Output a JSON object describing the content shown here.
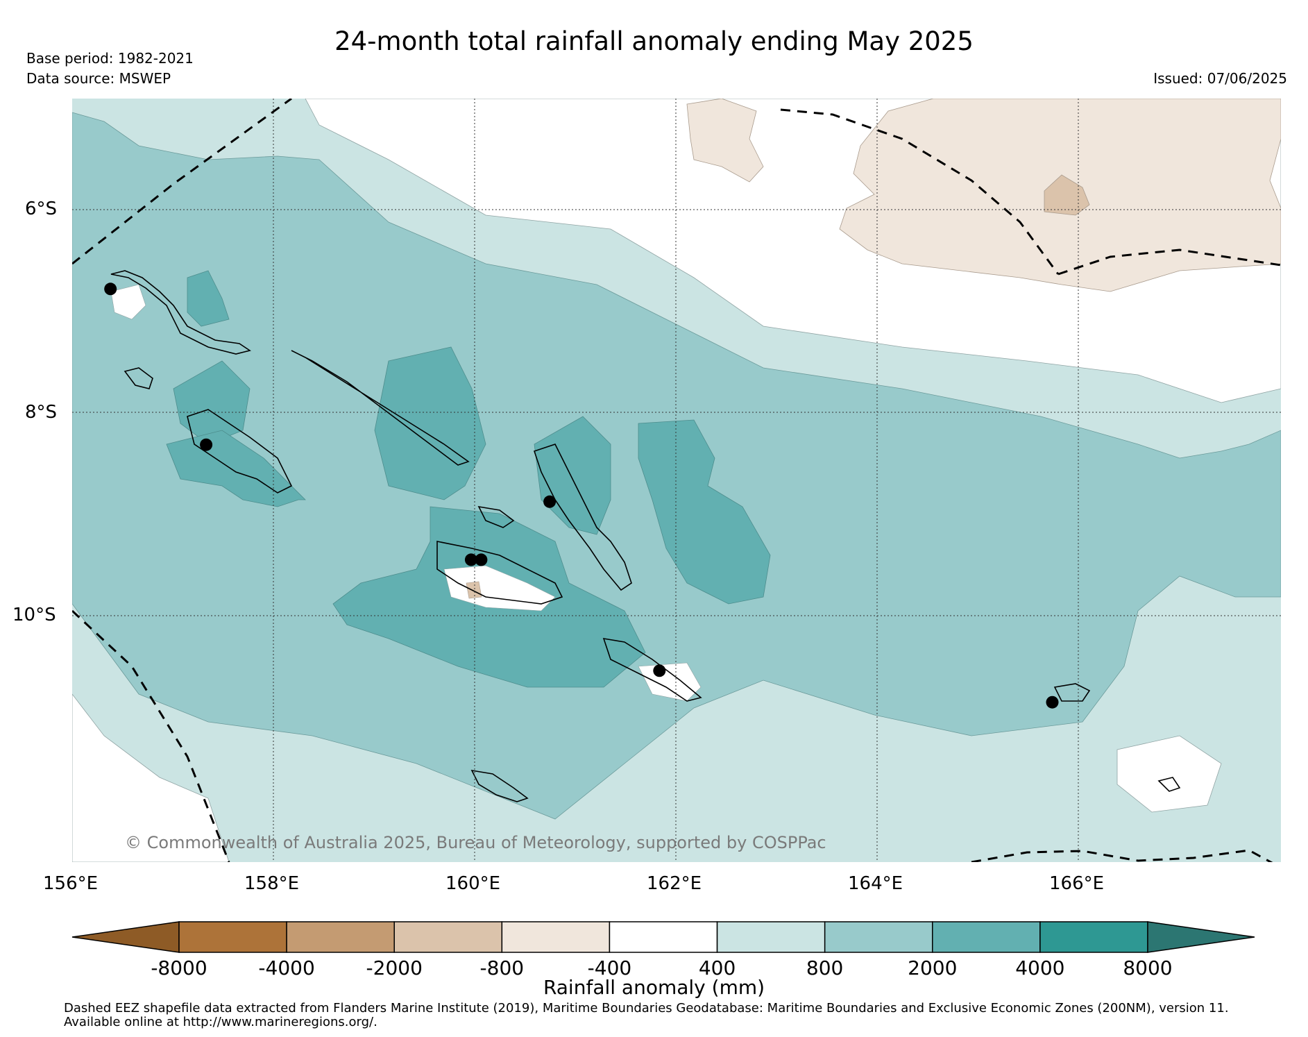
{
  "header": {
    "title": "24-month total rainfall anomaly ending May 2025",
    "base_period": "Base period: 1982-2021",
    "data_source": "Data source: MSWEP",
    "issued": "Issued: 07/06/2025"
  },
  "map": {
    "lat_labels": [
      "6°S",
      "8°S",
      "10°S"
    ],
    "lon_labels": [
      "156°E",
      "158°E",
      "160°E",
      "162°E",
      "164°E",
      "166°E"
    ],
    "credit": "© Commonwealth of Australia 2025, Bureau of Meteorology, supported by COSPPac",
    "extent": {
      "lon_min": 156,
      "lon_max": 168,
      "lat_min": -12.4,
      "lat_max": -4.9
    },
    "stations": [
      {
        "lon": 156.38,
        "lat": -6.77
      },
      {
        "lon": 157.33,
        "lat": -8.3
      },
      {
        "lon": 160.74,
        "lat": -8.86
      },
      {
        "lon": 159.96,
        "lat": -9.43
      },
      {
        "lon": 160.06,
        "lat": -9.43
      },
      {
        "lon": 161.83,
        "lat": -10.52
      },
      {
        "lon": 165.73,
        "lat": -10.83
      }
    ]
  },
  "colorbar": {
    "label": "Rainfall anomaly (mm)",
    "ticks": [
      "-8000",
      "-4000",
      "-2000",
      "-800",
      "-400",
      "400",
      "800",
      "2000",
      "4000",
      "8000"
    ],
    "colors": [
      "#8e5b26",
      "#ad7339",
      "#c49b72",
      "#dbc3ab",
      "#f0e6dc",
      "#ffffff",
      "#cbe4e3",
      "#98cacb",
      "#62b0b1",
      "#2e9893",
      "#2c7672"
    ]
  },
  "footnote": {
    "line1": "Dashed EEZ shapefile data extracted from Flanders Marine Institute (2019), Maritime Boundaries Geodatabase: Maritime Boundaries and Exclusive Economic Zones (200NM), version 11.",
    "line2": "Available online at http://www.marineregions.org/."
  }
}
